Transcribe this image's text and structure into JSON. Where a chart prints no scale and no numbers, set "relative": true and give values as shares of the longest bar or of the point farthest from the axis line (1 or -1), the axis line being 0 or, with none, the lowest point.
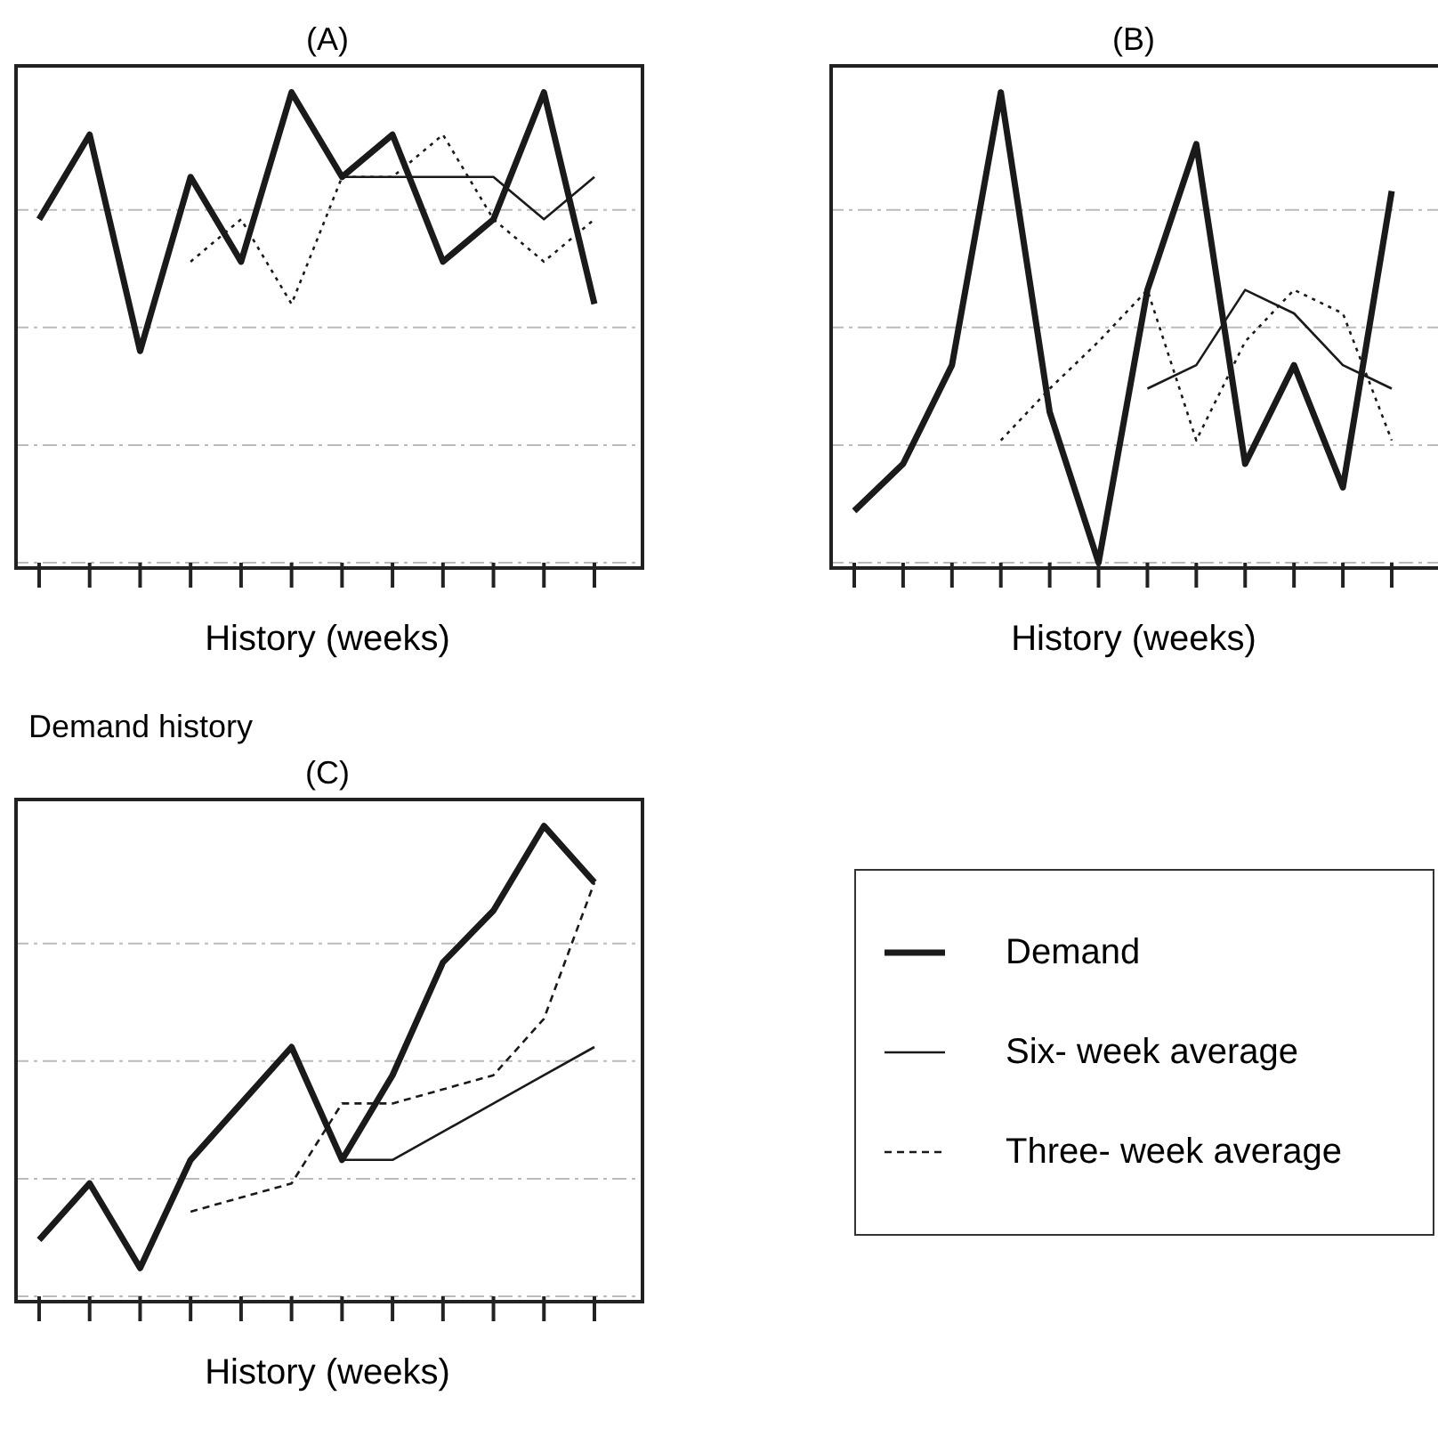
{
  "chart_data": [
    {
      "type": "line",
      "title": "(A)",
      "xlabel": "History (weeks)",
      "relative": true,
      "grid": "y",
      "categories": [
        null,
        null,
        null,
        null,
        null,
        null,
        null,
        null,
        null,
        null,
        null,
        null
      ],
      "series": [
        {
          "color": "#1a1a1a",
          "line_style": "solid",
          "values": [
            0.73,
            0.91,
            0.45,
            0.82,
            0.64,
            1,
            0.82,
            0.91,
            0.64,
            0.73,
            1,
            0.55
          ]
        },
        {
          "color": "#1a1a1a",
          "line_style": "solid",
          "values": [
            null,
            null,
            null,
            null,
            null,
            null,
            0.82,
            0.82,
            0.82,
            0.82,
            0.73,
            0.82
          ]
        },
        {
          "color": "#1a1a1a",
          "line_style": "dotted",
          "values": [
            null,
            null,
            null,
            0.64,
            0.73,
            0.55,
            0.82,
            0.82,
            0.91,
            0.73,
            0.64,
            0.73
          ]
        }
      ]
    },
    {
      "type": "line",
      "title": "(B)",
      "xlabel": "History (weeks)",
      "relative": true,
      "grid": "y",
      "categories": [
        null,
        null,
        null,
        null,
        null,
        null,
        null,
        null,
        null,
        null,
        null,
        null
      ],
      "series": [
        {
          "color": "#1a1a1a",
          "line_style": "solid",
          "values": [
            0.11,
            0.21,
            0.42,
            1,
            0.32,
            0,
            0.58,
            0.89,
            0.21,
            0.42,
            0.16,
            0.79
          ]
        },
        {
          "color": "#1a1a1a",
          "line_style": "solid",
          "values": [
            null,
            null,
            null,
            null,
            null,
            null,
            0.37,
            0.42,
            0.58,
            0.53,
            0.42,
            0.37
          ]
        },
        {
          "color": "#1a1a1a",
          "line_style": "dotted",
          "values": [
            null,
            null,
            null,
            0.26,
            0.37,
            0.47,
            0.58,
            0.26,
            0.47,
            0.58,
            0.53,
            0.26
          ]
        }
      ]
    },
    {
      "type": "line",
      "title": "(C)",
      "ylabel": "Demand history",
      "xlabel": "History (weeks)",
      "relative": true,
      "grid": "y",
      "legend": "right",
      "categories": [
        null,
        null,
        null,
        null,
        null,
        null,
        null,
        null,
        null,
        null,
        null,
        null
      ],
      "series": [
        {
          "name": "Demand",
          "color": "#1a1a1a",
          "line_style": "solid",
          "values": [
            0.12,
            0.24,
            0.06,
            0.29,
            0.41,
            0.53,
            0.29,
            0.47,
            0.71,
            0.82,
            1,
            0.88
          ]
        },
        {
          "name": "Six- week average",
          "color": "#1a1a1a",
          "line_style": "solid",
          "values": [
            null,
            null,
            null,
            null,
            null,
            null,
            0.29,
            0.29,
            0.35,
            0.41,
            0.47,
            0.53
          ]
        },
        {
          "name": "Three- week average",
          "color": "#1a1a1a",
          "line_style": "dashed",
          "values": [
            null,
            null,
            null,
            0.18,
            0.21,
            0.24,
            0.41,
            0.41,
            0.44,
            0.47,
            0.59,
            0.88
          ]
        }
      ]
    }
  ]
}
